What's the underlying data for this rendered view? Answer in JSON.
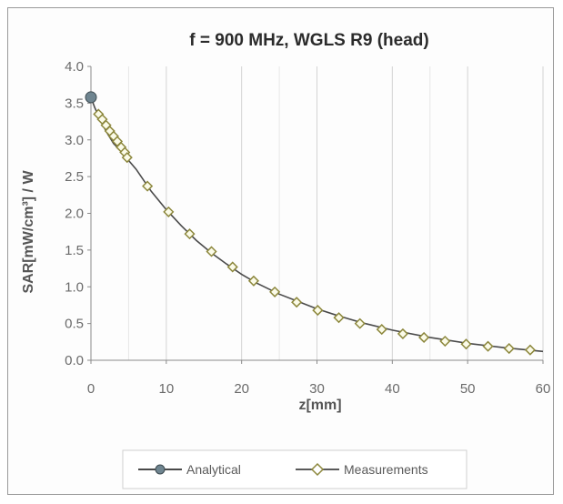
{
  "chart_data": {
    "type": "line",
    "title": "f = 900 MHz, WGLS R9 (head)",
    "xlabel": "z[mm]",
    "ylabel": "SAR[mW/cm³] / W",
    "xlim": [
      0,
      60
    ],
    "ylim": [
      0,
      4.0
    ],
    "xticks": [
      "0",
      "10",
      "20",
      "30",
      "40",
      "50",
      "60"
    ],
    "yticks": [
      "0.0",
      "0.5",
      "1.0",
      "1.5",
      "2.0",
      "2.5",
      "3.0",
      "3.5",
      "4.0"
    ],
    "grid": "vertical",
    "legend_position": "bottom",
    "series": [
      {
        "name": "Analytical",
        "color": "#4a4a4a",
        "marker": "circle",
        "marker_color": "#6f8590",
        "x": [
          0,
          0.5,
          1,
          1.5,
          2,
          3,
          4,
          5,
          6,
          8,
          10,
          12,
          14,
          16,
          18,
          20,
          22,
          25,
          28,
          30,
          33,
          36,
          40,
          45,
          50,
          55,
          58,
          60
        ],
        "y": [
          3.58,
          3.44,
          3.33,
          3.22,
          3.12,
          2.95,
          2.85,
          2.72,
          2.6,
          2.3,
          2.05,
          1.83,
          1.63,
          1.46,
          1.31,
          1.17,
          1.05,
          0.9,
          0.78,
          0.7,
          0.6,
          0.51,
          0.41,
          0.31,
          0.23,
          0.17,
          0.14,
          0.12
        ]
      },
      {
        "name": "Measurements",
        "color": "#5a5a5a",
        "marker": "diamond",
        "marker_color": "#c9c25a",
        "x": [
          1.0,
          1.5,
          2.0,
          2.5,
          3.0,
          3.5,
          4.0,
          4.5,
          4.8,
          7.5,
          10.3,
          13.1,
          16.0,
          18.8,
          21.6,
          24.4,
          27.3,
          30.1,
          32.9,
          35.7,
          38.6,
          41.4,
          44.2,
          47.0,
          49.8,
          52.7,
          55.5,
          58.3
        ],
        "y": [
          3.35,
          3.28,
          3.2,
          3.12,
          3.05,
          2.98,
          2.9,
          2.83,
          2.76,
          2.37,
          2.02,
          1.72,
          1.48,
          1.27,
          1.08,
          0.93,
          0.79,
          0.68,
          0.58,
          0.5,
          0.42,
          0.36,
          0.31,
          0.26,
          0.22,
          0.19,
          0.16,
          0.14
        ]
      }
    ]
  }
}
